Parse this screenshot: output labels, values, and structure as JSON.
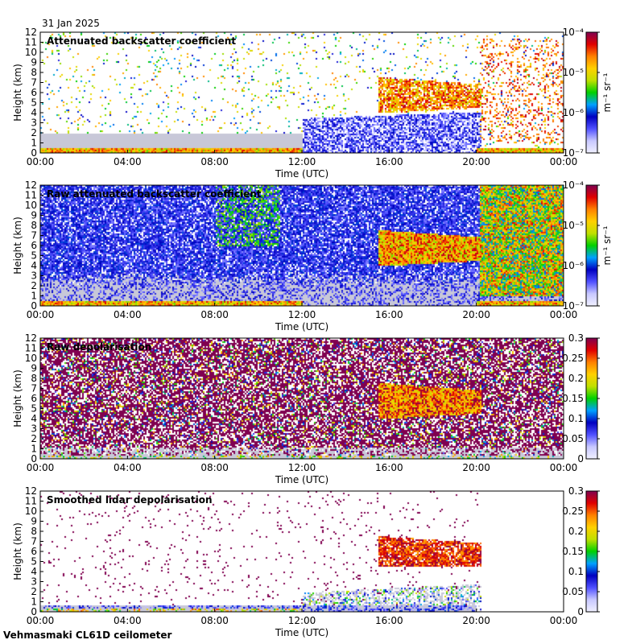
{
  "header": {
    "date": "31 Jan 2025"
  },
  "footer": {
    "instrument": "Vehmasmaki CL61D ceilometer"
  },
  "colors": {
    "plot_border": "#000000",
    "noise_gray": "#c8c8d8",
    "cmap": [
      "#f0f0ff",
      "#c8c8ff",
      "#5050ff",
      "#0000c0",
      "#00a0ff",
      "#00d000",
      "#c0e000",
      "#ffd000",
      "#ff8000",
      "#e00000",
      "#800050"
    ]
  },
  "chart_data": [
    {
      "type": "heatmap",
      "title": "Attenuated backscatter coefficient",
      "xlabel": "Time (UTC)",
      "ylabel": "Height (km)",
      "x_ticks": [
        "00:00",
        "04:00",
        "08:00",
        "12:00",
        "16:00",
        "20:00",
        "00:00"
      ],
      "y_ticks": [
        "0",
        "1",
        "2",
        "3",
        "4",
        "5",
        "6",
        "7",
        "8",
        "9",
        "10",
        "11",
        "12"
      ],
      "xlim": [
        0,
        24
      ],
      "ylim": [
        0,
        12
      ],
      "colorbar": {
        "scale": "log",
        "ticks": [
          "10⁻⁷",
          "10⁻⁶",
          "10⁻⁵",
          "10⁻⁴"
        ],
        "unit": "m⁻¹ sr⁻¹"
      }
    },
    {
      "type": "heatmap",
      "title": "Raw attenuated backscatter coefficient",
      "xlabel": "Time (UTC)",
      "ylabel": "Height (km)",
      "x_ticks": [
        "00:00",
        "04:00",
        "08:00",
        "12:00",
        "16:00",
        "20:00",
        "00:00"
      ],
      "y_ticks": [
        "0",
        "1",
        "2",
        "3",
        "4",
        "5",
        "6",
        "7",
        "8",
        "9",
        "10",
        "11",
        "12"
      ],
      "xlim": [
        0,
        24
      ],
      "ylim": [
        0,
        12
      ],
      "colorbar": {
        "scale": "log",
        "ticks": [
          "10⁻⁷",
          "10⁻⁶",
          "10⁻⁵",
          "10⁻⁴"
        ],
        "unit": "m⁻¹ sr⁻¹"
      }
    },
    {
      "type": "heatmap",
      "title": "Raw depolarisation",
      "xlabel": "Time (UTC)",
      "ylabel": "Height (km)",
      "x_ticks": [
        "00:00",
        "04:00",
        "08:00",
        "12:00",
        "16:00",
        "20:00",
        "00:00"
      ],
      "y_ticks": [
        "0",
        "1",
        "2",
        "3",
        "4",
        "5",
        "6",
        "7",
        "8",
        "9",
        "10",
        "11",
        "12"
      ],
      "xlim": [
        0,
        24
      ],
      "ylim": [
        0,
        12
      ],
      "colorbar": {
        "scale": "linear",
        "ticks": [
          "0",
          "0.05",
          "0.1",
          "0.15",
          "0.2",
          "0.25",
          "0.3"
        ],
        "unit": ""
      }
    },
    {
      "type": "heatmap",
      "title": "Smoothed lidar depolarisation",
      "xlabel": "Time (UTC)",
      "ylabel": "Height (km)",
      "x_ticks": [
        "00:00",
        "04:00",
        "08:00",
        "12:00",
        "16:00",
        "20:00",
        "00:00"
      ],
      "y_ticks": [
        "0",
        "1",
        "2",
        "3",
        "4",
        "5",
        "6",
        "7",
        "8",
        "9",
        "10",
        "11",
        "12"
      ],
      "xlim": [
        0,
        24
      ],
      "ylim": [
        0,
        12
      ],
      "colorbar": {
        "scale": "linear",
        "ticks": [
          "0",
          "0.05",
          "0.1",
          "0.15",
          "0.2",
          "0.25",
          "0.3"
        ],
        "unit": ""
      }
    }
  ]
}
